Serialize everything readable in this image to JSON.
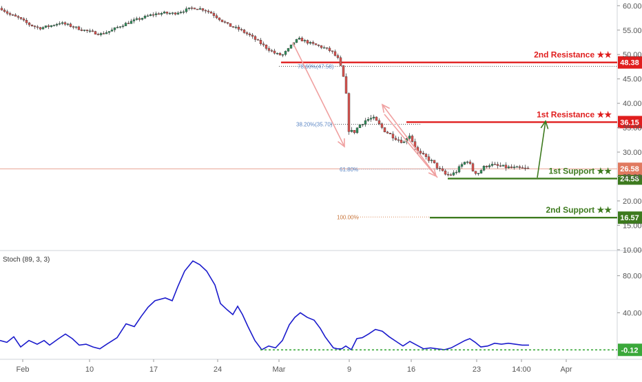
{
  "colors": {
    "up": "#2f8f5b",
    "down": "#d9534f",
    "wick": "#444444",
    "resistance": "#e01e1e",
    "support": "#3d7a1e",
    "stoch": "#1a1acc",
    "fib": "#5b86c4",
    "arrow_down": "#f0a0a0",
    "arrow_up": "#3d7a1e",
    "price_line": "#e8a090",
    "axis_text": "#555555"
  },
  "chart_data": [
    {
      "type": "candlestick",
      "title": "",
      "y_axis": {
        "ticks": [
          "60.00",
          "55.00",
          "50.00",
          "45.00",
          "40.00",
          "35.00",
          "30.00",
          "25.00",
          "20.00",
          "15.00",
          "10.00"
        ],
        "ylim": [
          10,
          61
        ]
      },
      "x_axis": {
        "ticks": [
          "Feb",
          "10",
          "17",
          "24",
          "Mar",
          "9",
          "16",
          "23",
          "14:00",
          "Apr"
        ]
      },
      "price_path": [
        [
          0,
          59.5
        ],
        [
          12,
          58.2
        ],
        [
          25,
          57.5
        ],
        [
          40,
          56.2
        ],
        [
          55,
          55.4
        ],
        [
          70,
          55.8
        ],
        [
          85,
          56.5
        ],
        [
          100,
          55.9
        ],
        [
          115,
          55.2
        ],
        [
          130,
          54.6
        ],
        [
          145,
          54.2
        ],
        [
          160,
          54.9
        ],
        [
          175,
          56.0
        ],
        [
          190,
          56.8
        ],
        [
          205,
          57.5
        ],
        [
          220,
          58.2
        ],
        [
          235,
          58.5
        ],
        [
          250,
          58.4
        ],
        [
          265,
          59.0
        ],
        [
          280,
          59.6
        ],
        [
          295,
          59.2
        ],
        [
          305,
          58.5
        ],
        [
          318,
          57.2
        ],
        [
          330,
          56.0
        ],
        [
          345,
          55.2
        ],
        [
          360,
          54.0
        ],
        [
          372,
          52.8
        ],
        [
          385,
          51.4
        ],
        [
          398,
          50.2
        ],
        [
          408,
          49.8
        ],
        [
          418,
          51.2
        ],
        [
          425,
          52.5
        ],
        [
          432,
          53.2
        ],
        [
          440,
          52.8
        ],
        [
          450,
          52.2
        ],
        [
          460,
          51.8
        ],
        [
          470,
          51.3
        ],
        [
          480,
          50.6
        ],
        [
          490,
          49.0
        ],
        [
          496,
          46.0
        ],
        [
          500,
          43.5
        ],
        [
          505,
          34.5
        ],
        [
          512,
          34.0
        ],
        [
          520,
          35.5
        ],
        [
          530,
          36.6
        ],
        [
          540,
          37.0
        ],
        [
          548,
          35.8
        ],
        [
          556,
          34.5
        ],
        [
          565,
          33.6
        ],
        [
          575,
          32.7
        ],
        [
          585,
          32.0
        ],
        [
          592,
          33.8
        ],
        [
          598,
          32.0
        ],
        [
          606,
          29.8
        ],
        [
          616,
          29.0
        ],
        [
          626,
          28.0
        ],
        [
          636,
          26.5
        ],
        [
          646,
          25.3
        ],
        [
          655,
          25.4
        ],
        [
          662,
          26.2
        ],
        [
          670,
          27.6
        ],
        [
          678,
          28.4
        ],
        [
          684,
          26.3
        ],
        [
          692,
          25.6
        ],
        [
          700,
          26.8
        ],
        [
          708,
          27.5
        ],
        [
          718,
          27.2
        ],
        [
          728,
          27.0
        ],
        [
          738,
          26.8
        ],
        [
          748,
          26.7
        ],
        [
          758,
          26.6
        ],
        [
          765,
          26.58
        ]
      ],
      "levels": [
        {
          "label": "2nd Resistance ★★",
          "value": 48.38,
          "value_text": "48.38",
          "kind": "resistance"
        },
        {
          "label": "1st Resistance ★★",
          "value": 36.15,
          "value_text": "36.15",
          "kind": "resistance"
        },
        {
          "label": "1st Support ★★",
          "value": 24.58,
          "value_text": "24.58",
          "kind": "support"
        },
        {
          "label": "2nd Support ★★",
          "value": 16.57,
          "value_text": "16.57",
          "kind": "support"
        }
      ],
      "current_price": {
        "value": 26.58,
        "value_text": "26.58"
      },
      "fibonacci": [
        {
          "label": "78.60%(47.58)",
          "value": 47.58
        },
        {
          "label": "38.20%(35.70)",
          "value": 35.7
        },
        {
          "label": "61.80%",
          "value": 26.5
        },
        {
          "label": "100.00%",
          "value": 16.7
        }
      ]
    },
    {
      "type": "line",
      "title": "Stoch (89, 3, 3)",
      "y_axis": {
        "ticks": [
          "80.00",
          "40.00"
        ],
        "ylim": [
          -5,
          105
        ]
      },
      "series": [
        {
          "name": "",
          "values": [
            [
              0,
              10
            ],
            [
              10,
              8
            ],
            [
              20,
              14
            ],
            [
              30,
              3
            ],
            [
              42,
              10
            ],
            [
              54,
              6
            ],
            [
              64,
              10
            ],
            [
              72,
              5
            ],
            [
              85,
              12
            ],
            [
              95,
              17
            ],
            [
              105,
              12
            ],
            [
              115,
              5
            ],
            [
              125,
              6
            ],
            [
              135,
              3
            ],
            [
              145,
              1
            ],
            [
              155,
              6
            ],
            [
              170,
              13
            ],
            [
              183,
              28
            ],
            [
              195,
              25
            ],
            [
              205,
              36
            ],
            [
              215,
              46
            ],
            [
              225,
              53
            ],
            [
              240,
              56
            ],
            [
              250,
              53
            ],
            [
              258,
              68
            ],
            [
              268,
              85
            ],
            [
              280,
              96
            ],
            [
              290,
              92
            ],
            [
              300,
              85
            ],
            [
              312,
              70
            ],
            [
              320,
              50
            ],
            [
              330,
              43
            ],
            [
              338,
              38
            ],
            [
              345,
              47
            ],
            [
              352,
              38
            ],
            [
              360,
              25
            ],
            [
              370,
              10
            ],
            [
              380,
              0
            ],
            [
              390,
              4
            ],
            [
              400,
              2
            ],
            [
              410,
              10
            ],
            [
              420,
              27
            ],
            [
              428,
              35
            ],
            [
              436,
              40
            ],
            [
              446,
              35
            ],
            [
              456,
              32
            ],
            [
              465,
              23
            ],
            [
              472,
              14
            ],
            [
              478,
              8
            ],
            [
              484,
              2
            ],
            [
              490,
              1
            ],
            [
              496,
              1
            ],
            [
              502,
              4
            ],
            [
              510,
              0
            ],
            [
              518,
              12
            ],
            [
              526,
              13
            ],
            [
              535,
              17
            ],
            [
              545,
              22
            ],
            [
              555,
              20
            ],
            [
              565,
              14
            ],
            [
              575,
              9
            ],
            [
              585,
              4
            ],
            [
              595,
              9
            ],
            [
              605,
              5
            ],
            [
              615,
              1
            ],
            [
              625,
              2
            ],
            [
              635,
              1
            ],
            [
              645,
              0
            ],
            [
              655,
              2
            ],
            [
              665,
              6
            ],
            [
              675,
              10
            ],
            [
              682,
              12
            ],
            [
              690,
              8
            ],
            [
              698,
              3
            ],
            [
              708,
              4
            ],
            [
              718,
              7
            ],
            [
              728,
              6
            ],
            [
              738,
              7
            ],
            [
              748,
              6
            ],
            [
              758,
              5
            ],
            [
              768,
              5
            ]
          ]
        }
      ],
      "current": {
        "value": -0.12,
        "value_text": "-0.12"
      }
    }
  ]
}
